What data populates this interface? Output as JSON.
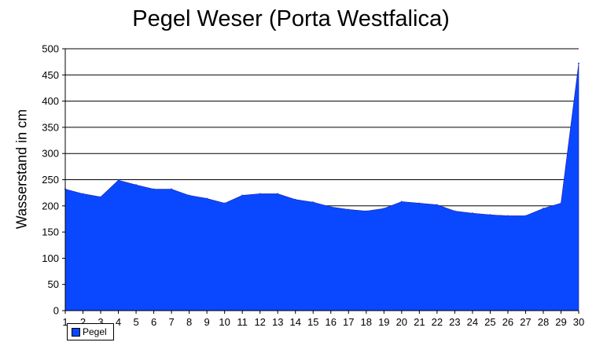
{
  "chart_data": {
    "type": "area",
    "title": "Pegel Weser (Porta Westfalica)",
    "xlabel": "",
    "ylabel": "Wasserstand in cm",
    "x": [
      1,
      2,
      3,
      4,
      5,
      6,
      7,
      8,
      9,
      10,
      11,
      12,
      13,
      14,
      15,
      16,
      17,
      18,
      19,
      20,
      21,
      22,
      23,
      24,
      25,
      26,
      27,
      28,
      29,
      30
    ],
    "series": [
      {
        "name": "Pegel",
        "color": "#0a48ff",
        "values": [
          232,
          223,
          217,
          249,
          240,
          232,
          232,
          220,
          214,
          205,
          220,
          223,
          223,
          212,
          207,
          198,
          193,
          190,
          195,
          208,
          205,
          202,
          190,
          186,
          183,
          181,
          181,
          195,
          205,
          472
        ]
      }
    ],
    "ylim": [
      0,
      500
    ],
    "yticks": [
      0,
      50,
      100,
      150,
      200,
      250,
      300,
      350,
      400,
      450,
      500
    ],
    "grid": "horizontal",
    "legend_position": "bottom-left"
  }
}
